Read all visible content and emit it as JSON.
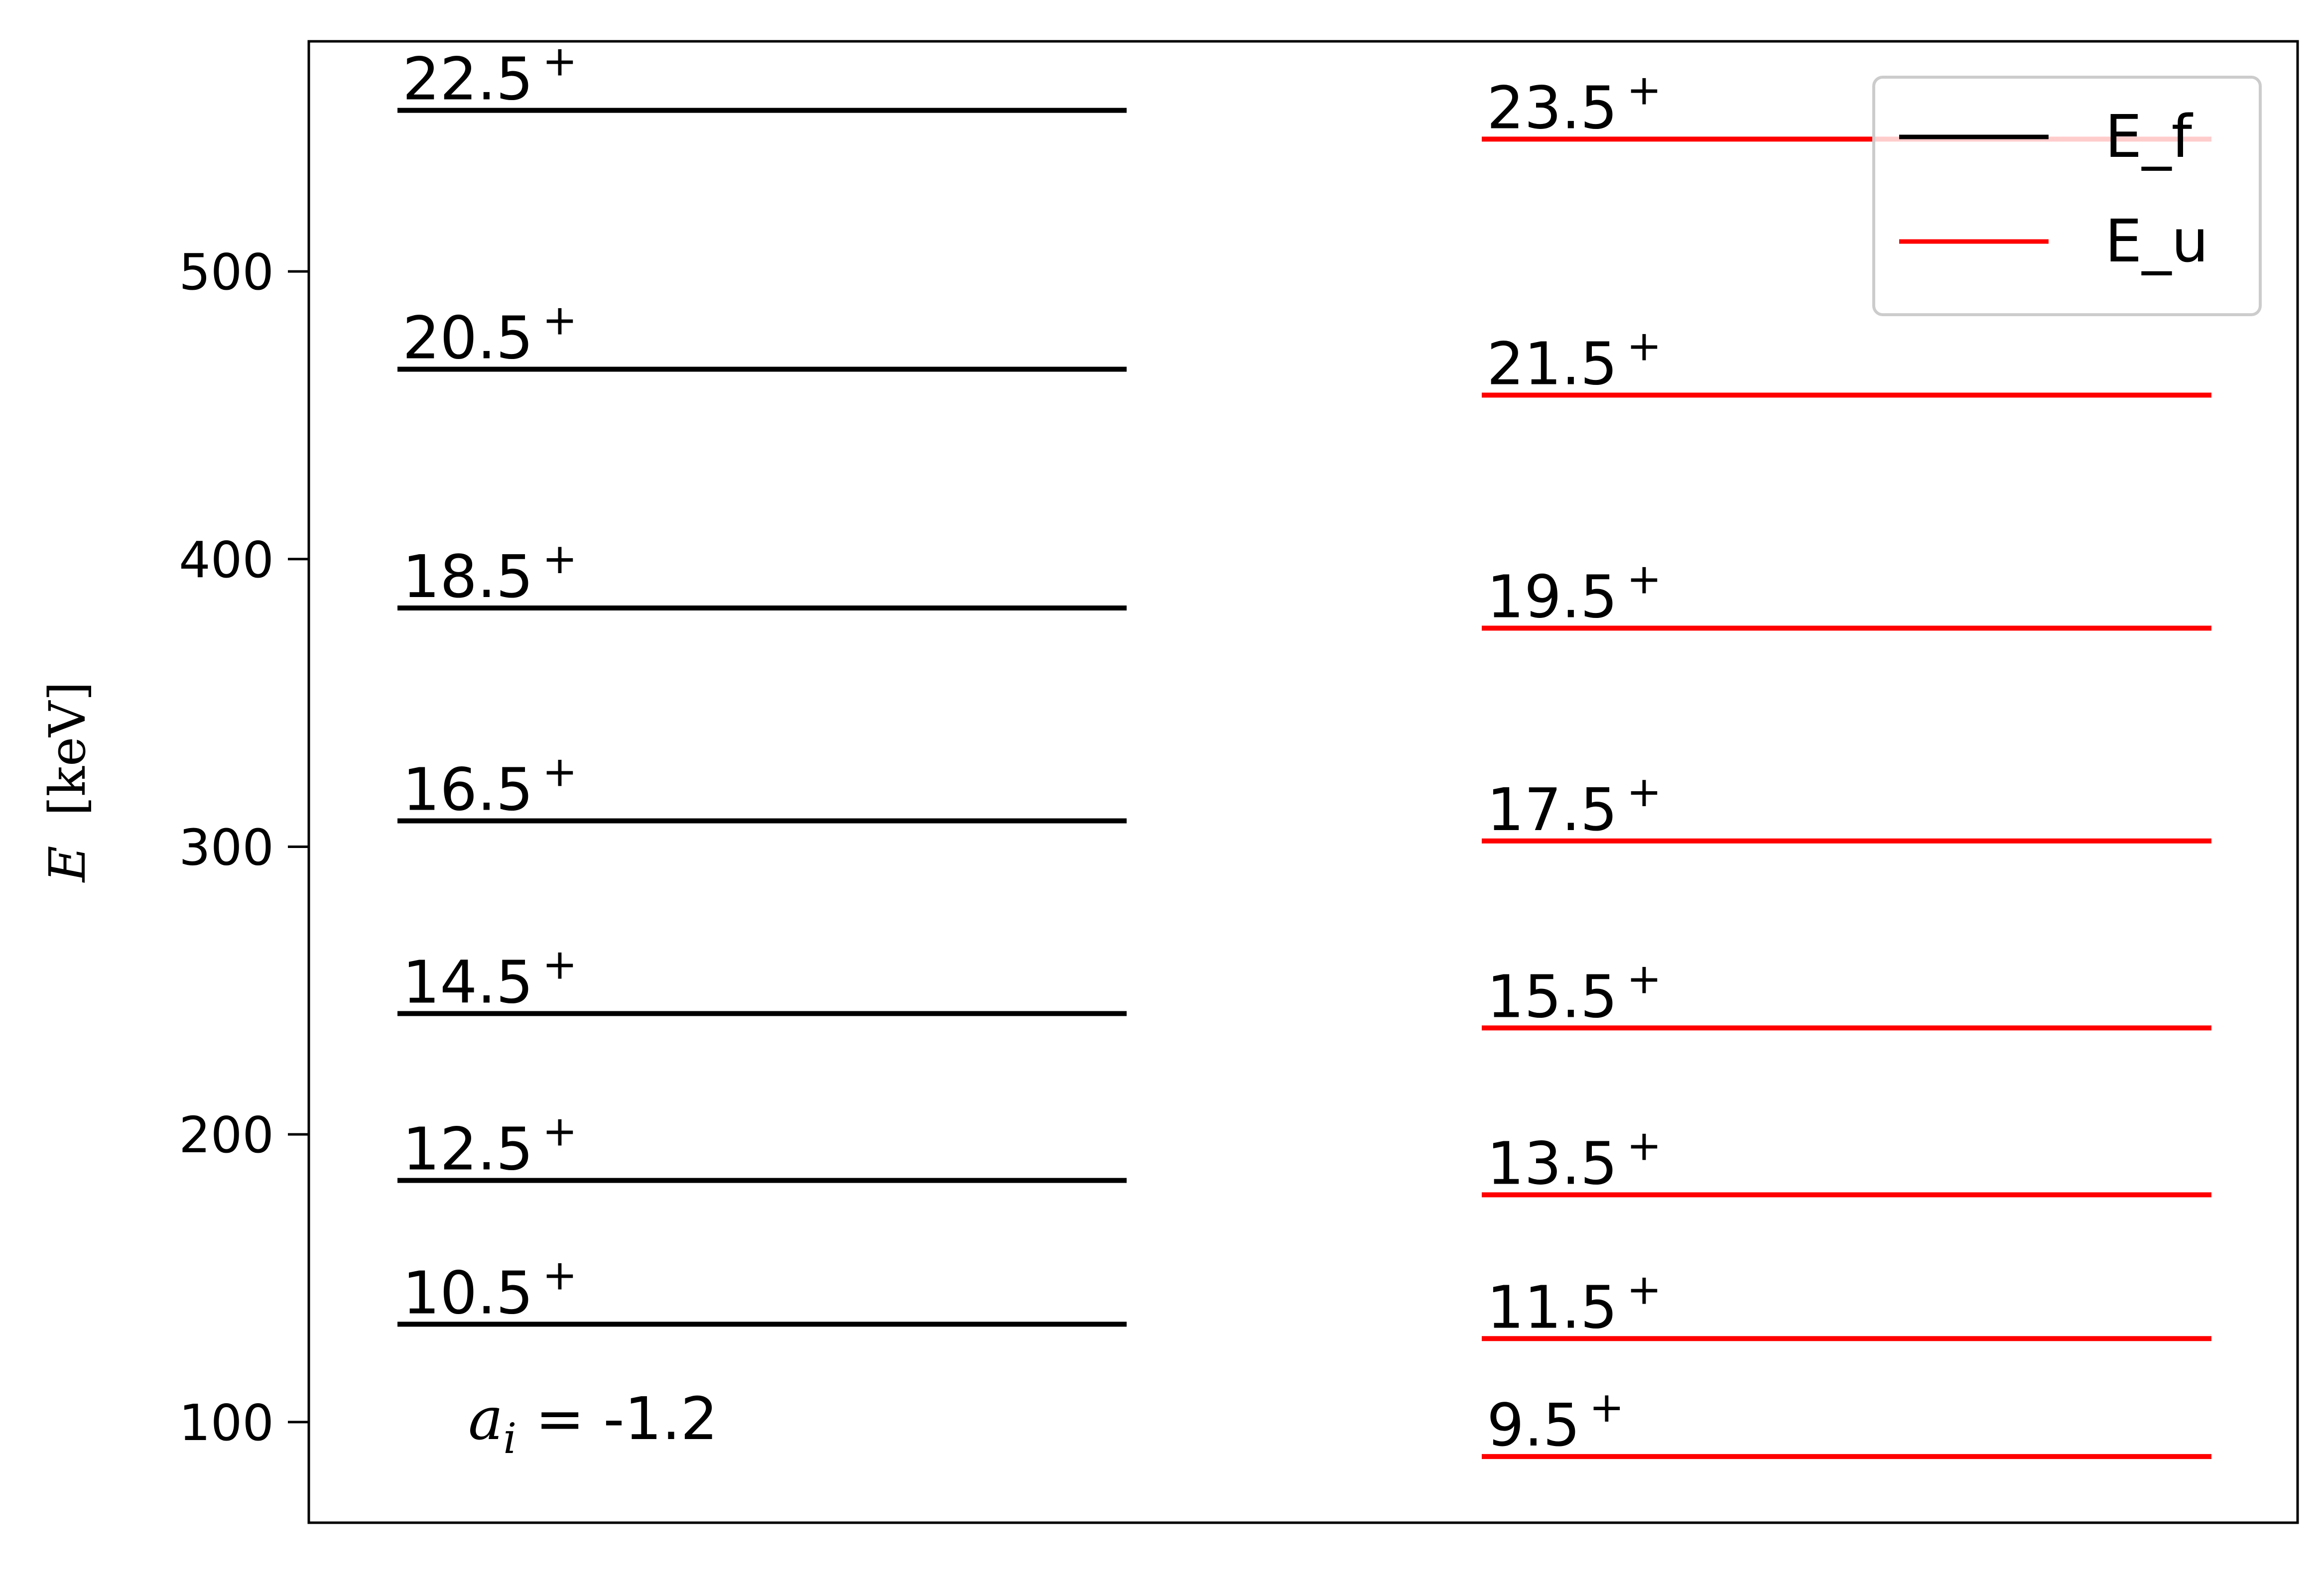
{
  "chart_data": {
    "type": "line",
    "title": "",
    "xlabel": "",
    "ylabel": "E [keV]",
    "ylabel_parts": {
      "symbol": "E",
      "unit": "[keV]"
    },
    "ylim": [
      65,
      580
    ],
    "yticks": [
      100,
      200,
      300,
      400,
      500
    ],
    "grid": false,
    "legend": {
      "placement": "top-right",
      "entries": [
        "E_f",
        "E_u"
      ]
    },
    "annotation": {
      "symbol": "a",
      "subscript": "i",
      "text": " = -1.2"
    },
    "series": [
      {
        "name": "E_f",
        "color": "#000000",
        "levels": [
          {
            "spin": "10.5",
            "parity": "+",
            "energy": 134
          },
          {
            "spin": "12.5",
            "parity": "+",
            "energy": 184
          },
          {
            "spin": "14.5",
            "parity": "+",
            "energy": 242
          },
          {
            "spin": "16.5",
            "parity": "+",
            "energy": 309
          },
          {
            "spin": "18.5",
            "parity": "+",
            "energy": 383
          },
          {
            "spin": "20.5",
            "parity": "+",
            "energy": 466
          },
          {
            "spin": "22.5",
            "parity": "+",
            "energy": 556
          }
        ]
      },
      {
        "name": "E_u",
        "color": "#ff0000",
        "levels": [
          {
            "spin": "9.5",
            "parity": "+",
            "energy": 88
          },
          {
            "spin": "11.5",
            "parity": "+",
            "energy": 129
          },
          {
            "spin": "13.5",
            "parity": "+",
            "energy": 179
          },
          {
            "spin": "15.5",
            "parity": "+",
            "energy": 237
          },
          {
            "spin": "17.5",
            "parity": "+",
            "energy": 302
          },
          {
            "spin": "19.5",
            "parity": "+",
            "energy": 376
          },
          {
            "spin": "21.5",
            "parity": "+",
            "energy": 457
          },
          {
            "spin": "23.5",
            "parity": "+",
            "energy": 546
          }
        ]
      }
    ]
  }
}
